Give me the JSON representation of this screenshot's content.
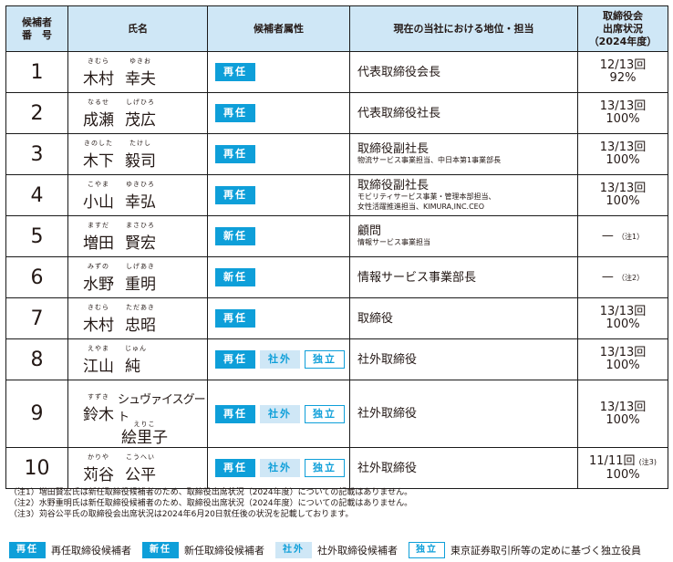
{
  "header": {
    "num": [
      "候補者",
      "番　号"
    ],
    "name": "氏名",
    "attr": "候補者属性",
    "position": "現在の当社における地位・担当",
    "attendance": [
      "取締役会",
      "出席状況",
      "（2024年度）"
    ]
  },
  "tag_labels": {
    "re": "再任",
    "new": "新任",
    "out": "社外",
    "ind": "独立"
  },
  "rows": [
    {
      "num": "1",
      "name": [
        {
          "t": "木村",
          "r": "きむら"
        },
        {
          "t": "幸夫",
          "r": "ゆきお"
        }
      ],
      "tags": [
        "re"
      ],
      "pos": "代表取締役会長",
      "sub": [],
      "att1": "12/13回",
      "att2": "92%",
      "note": ""
    },
    {
      "num": "2",
      "name": [
        {
          "t": "成瀬",
          "r": "なるせ"
        },
        {
          "t": "茂広",
          "r": "しげひろ"
        }
      ],
      "tags": [
        "re"
      ],
      "pos": "代表取締役社長",
      "sub": [],
      "att1": "13/13回",
      "att2": "100%",
      "note": ""
    },
    {
      "num": "3",
      "name": [
        {
          "t": "木下",
          "r": "きのした"
        },
        {
          "t": "毅司",
          "r": "たけし"
        }
      ],
      "tags": [
        "re"
      ],
      "pos": "取締役副社長",
      "sub": [
        "物流サービス事業担当、中日本第1事業部長"
      ],
      "att1": "13/13回",
      "att2": "100%",
      "note": ""
    },
    {
      "num": "4",
      "name": [
        {
          "t": "小山",
          "r": "こやま"
        },
        {
          "t": "幸弘",
          "r": "ゆきひろ"
        }
      ],
      "tags": [
        "re"
      ],
      "pos": "取締役副社長",
      "sub": [
        "モビリティサービス事業・管理本部担当、",
        "女性活躍推進担当、KIMURA,INC.CEO"
      ],
      "att1": "13/13回",
      "att2": "100%",
      "note": ""
    },
    {
      "num": "5",
      "name": [
        {
          "t": "増田",
          "r": "ますだ"
        },
        {
          "t": "賢宏",
          "r": "まさひろ"
        }
      ],
      "tags": [
        "new"
      ],
      "pos": "顧問",
      "sub": [
        "情報サービス事業担当"
      ],
      "att1": "—",
      "att2": "",
      "note": "（注1）"
    },
    {
      "num": "6",
      "name": [
        {
          "t": "水野",
          "r": "みずの"
        },
        {
          "t": "重明",
          "r": "しげあき"
        }
      ],
      "tags": [
        "new"
      ],
      "pos": "情報サービス事業部長",
      "sub": [],
      "att1": "—",
      "att2": "",
      "note": "（注2）"
    },
    {
      "num": "7",
      "name": [
        {
          "t": "木村",
          "r": "きむら"
        },
        {
          "t": "忠昭",
          "r": "ただあき"
        }
      ],
      "tags": [
        "re"
      ],
      "pos": "取締役",
      "sub": [],
      "att1": "13/13回",
      "att2": "100%",
      "note": ""
    },
    {
      "num": "8",
      "name": [
        {
          "t": "江山",
          "r": "えやま"
        },
        {
          "t": "純",
          "r": "じゅん"
        }
      ],
      "tags": [
        "re",
        "out",
        "ind"
      ],
      "pos": "社外取締役",
      "sub": [],
      "att1": "13/13回",
      "att2": "100%",
      "note": ""
    },
    {
      "num": "9",
      "name2": {
        "a": "鈴木",
        "ar": "すずき",
        "k": "シュヴァイスグート",
        "b": "絵里子",
        "br": "えりこ"
      },
      "tags": [
        "re",
        "out",
        "ind"
      ],
      "pos": "社外取締役",
      "sub": [],
      "att1": "13/13回",
      "att2": "100%",
      "note": ""
    },
    {
      "num": "10",
      "name": [
        {
          "t": "苅谷",
          "r": "かりや"
        },
        {
          "t": "公平",
          "r": "こうへい"
        }
      ],
      "tags": [
        "re",
        "out",
        "ind"
      ],
      "pos": "社外取締役",
      "sub": [],
      "att1": "11/11回",
      "att2": "100%",
      "note": "(注3)"
    }
  ],
  "notes": [
    "（注1）増田賢宏氏は新任取締役候補者のため、取締役出席状況（2024年度）についての記載はありません。",
    "（注2）水野重明氏は新任取締役候補者のため、取締役出席状況（2024年度）についての記載はありません。",
    "（注3）苅谷公平氏の取締役会出席状況は2024年6月20日就任後の状況を記載しております。"
  ],
  "legend": [
    {
      "tag": "re",
      "text": "再任取締役候補者"
    },
    {
      "tag": "new",
      "text": "新任取締役候補者"
    },
    {
      "tag": "out",
      "text": "社外取締役候補者"
    },
    {
      "tag": "ind",
      "text": "東京証券取引所等の定めに基づく独立役員"
    }
  ],
  "colors": {
    "header_bg": "#cfe7f6",
    "accent": "#0e9fd9"
  }
}
